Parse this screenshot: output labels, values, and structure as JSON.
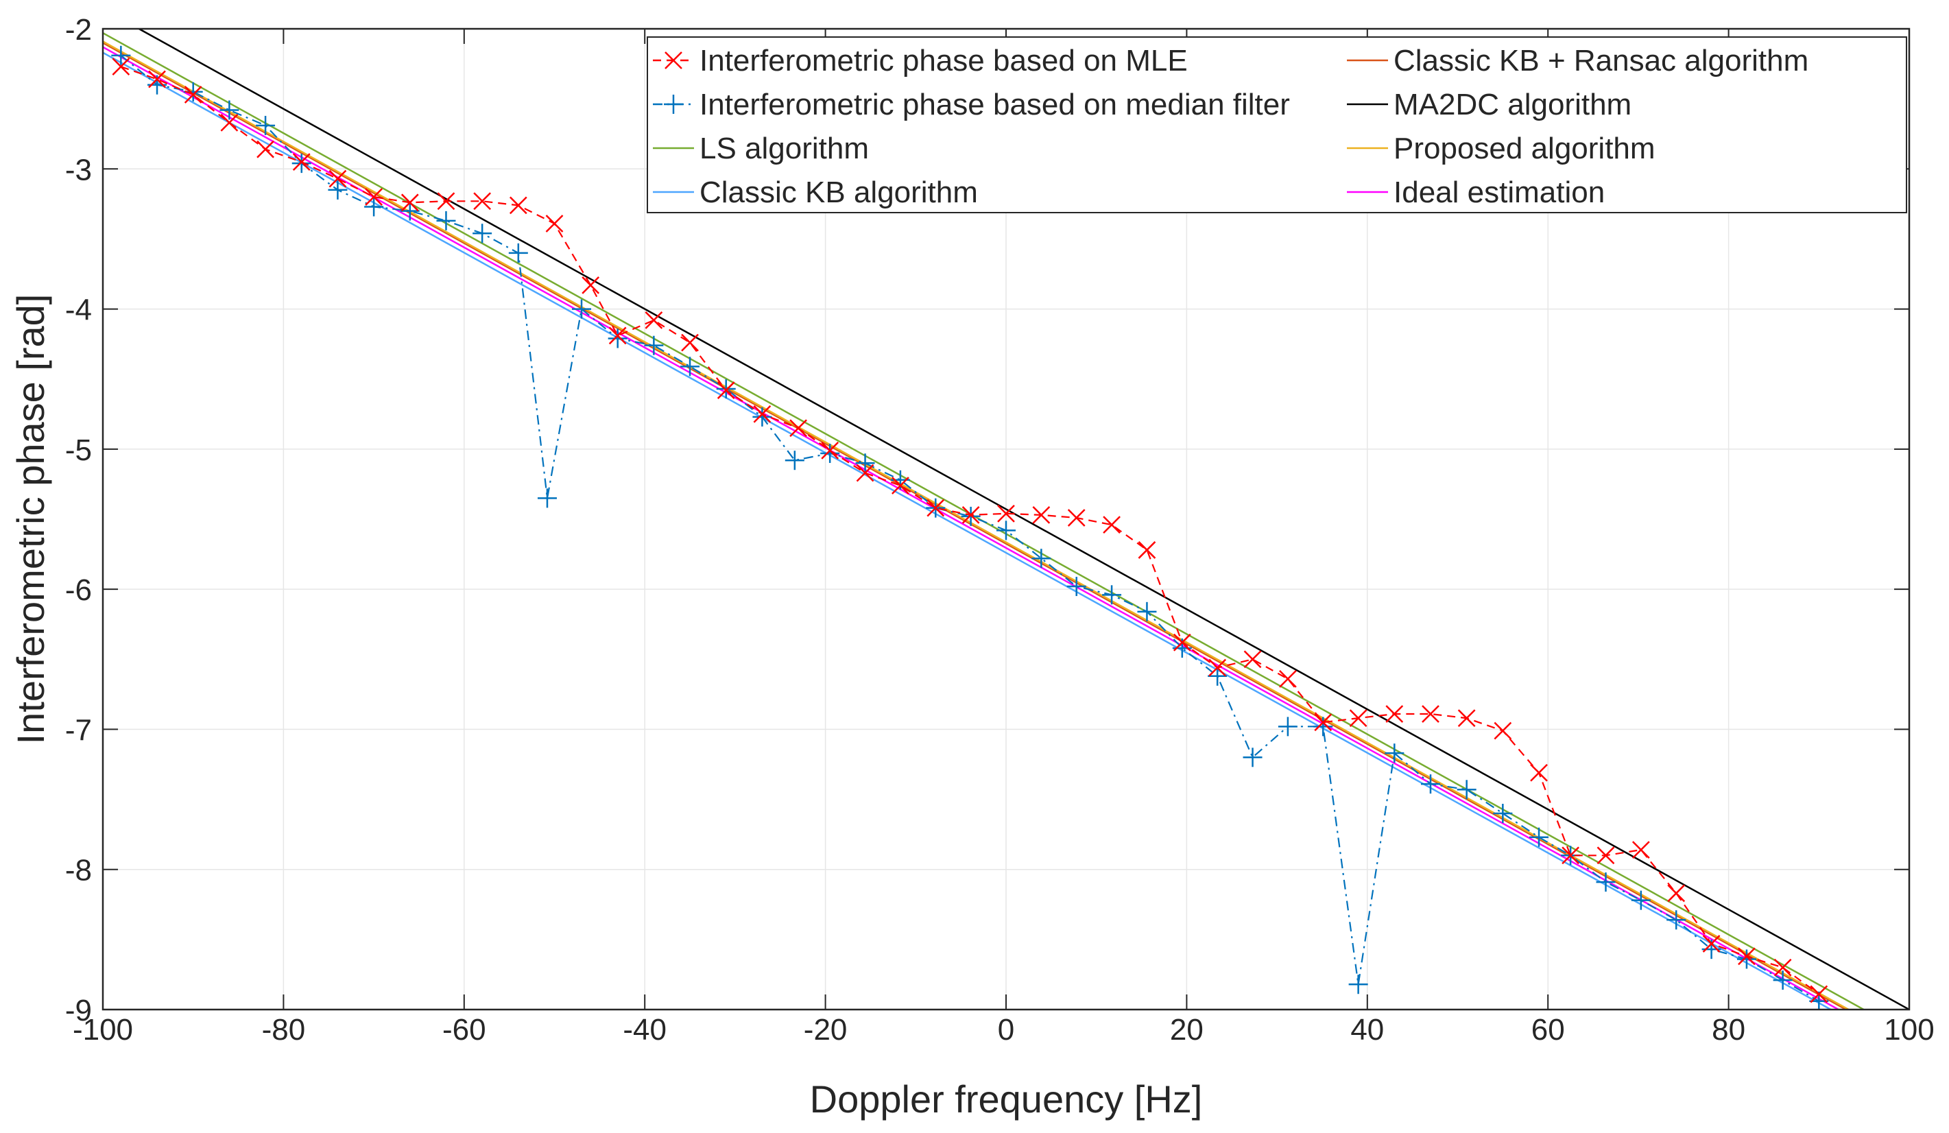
{
  "chart_data": {
    "type": "line",
    "xlabel": "Doppler frequency [Hz]",
    "ylabel": "Interferometric phase [rad]",
    "xlim": [
      -100,
      100
    ],
    "ylim": [
      -9,
      -2
    ],
    "xticks": [
      -100,
      -80,
      -60,
      -40,
      -20,
      0,
      20,
      40,
      60,
      80,
      100
    ],
    "yticks": [
      -2,
      -3,
      -4,
      -5,
      -6,
      -7,
      -8,
      -9
    ],
    "xtick_labels": [
      "-100",
      "-80",
      "-60",
      "-40",
      "-20",
      "0",
      "20",
      "40",
      "60",
      "80",
      "100"
    ],
    "ytick_labels": [
      "-2",
      "-3",
      "-4",
      "-5",
      "-6",
      "-7",
      "-8",
      "-9"
    ],
    "grid": true,
    "legend_position": "top-right",
    "series": [
      {
        "name": "Interferometric phase based on MLE",
        "color": "#ff0000",
        "style": "dashed",
        "marker": "x",
        "x": [
          -98,
          -94,
          -90,
          -86,
          -82,
          -78,
          -74,
          -70,
          -66,
          -62,
          -58,
          -54,
          -50,
          -46,
          -43,
          -39,
          -35,
          -31,
          -27,
          -23,
          -19.5,
          -15.6,
          -11.7,
          -7.8,
          -3.9,
          0,
          3.9,
          7.8,
          11.7,
          15.6,
          19.5,
          23.4,
          27.3,
          31.2,
          35.1,
          39,
          43,
          47,
          51,
          55,
          59,
          62.5,
          66.4,
          70.3,
          74.2,
          78.1,
          82,
          86,
          90
        ],
        "y": [
          -2.27,
          -2.36,
          -2.47,
          -2.67,
          -2.86,
          -2.95,
          -3.07,
          -3.2,
          -3.24,
          -3.23,
          -3.23,
          -3.26,
          -3.39,
          -3.83,
          -4.19,
          -4.08,
          -4.24,
          -4.58,
          -4.75,
          -4.85,
          -5.01,
          -5.17,
          -5.26,
          -5.42,
          -5.47,
          -5.46,
          -5.47,
          -5.49,
          -5.54,
          -5.72,
          -6.38,
          -6.56,
          -6.5,
          -6.64,
          -6.95,
          -6.92,
          -6.89,
          -6.89,
          -6.92,
          -7.01,
          -7.31,
          -7.9,
          -7.9,
          -7.86,
          -8.17,
          -8.53,
          -8.62,
          -8.7,
          -8.89
        ]
      },
      {
        "name": "Interferometric phase based on median filter",
        "color": "#0072bd",
        "style": "dashdot",
        "marker": "+",
        "x": [
          -98,
          -94,
          -90,
          -86,
          -82,
          -78,
          -74,
          -70,
          -66,
          -62,
          -58,
          -54,
          -50.8,
          -47,
          -43,
          -39,
          -35,
          -31,
          -27,
          -23.4,
          -19.5,
          -15.6,
          -11.7,
          -7.8,
          -3.9,
          0,
          3.9,
          7.8,
          11.7,
          15.6,
          19.5,
          23.4,
          27.3,
          31.2,
          35.1,
          39,
          43,
          47,
          51,
          55,
          59,
          62.5,
          66.4,
          70.3,
          74.2,
          78.1,
          82,
          86,
          90
        ],
        "y": [
          -2.19,
          -2.4,
          -2.45,
          -2.58,
          -2.69,
          -2.96,
          -3.15,
          -3.27,
          -3.3,
          -3.37,
          -3.46,
          -3.6,
          -5.35,
          -4.0,
          -4.21,
          -4.26,
          -4.41,
          -4.57,
          -4.77,
          -5.08,
          -5.03,
          -5.1,
          -5.22,
          -5.42,
          -5.48,
          -5.58,
          -5.78,
          -5.98,
          -6.04,
          -6.16,
          -6.42,
          -6.62,
          -7.2,
          -6.98,
          -6.98,
          -8.82,
          -7.17,
          -7.39,
          -7.43,
          -7.6,
          -7.77,
          -7.9,
          -8.09,
          -8.22,
          -8.36,
          -8.57,
          -8.64,
          -8.79,
          -8.94
        ]
      },
      {
        "name": "LS algorithm",
        "color": "#77ac30",
        "style": "solid",
        "marker": "none",
        "x": [
          -100,
          100
        ],
        "y": [
          -2.03,
          -9.18
        ]
      },
      {
        "name": "Classic KB algorithm",
        "color": "#4da6ff",
        "style": "solid",
        "marker": "none",
        "x": [
          -100,
          100
        ],
        "y": [
          -2.17,
          -9.31
        ]
      },
      {
        "name": "Classic KB + Ransac algorithm",
        "color": "#d95319",
        "style": "solid",
        "marker": "none",
        "x": [
          -100,
          100
        ],
        "y": [
          -2.1,
          -9.25
        ]
      },
      {
        "name": "MA2DC algorithm",
        "color": "#000000",
        "style": "solid",
        "marker": "none",
        "x": [
          -96,
          100
        ],
        "y": [
          -2.0,
          -9.0
        ]
      },
      {
        "name": "Proposed algorithm",
        "color": "#edb120",
        "style": "solid",
        "marker": "none",
        "x": [
          -100,
          100
        ],
        "y": [
          -2.09,
          -9.24
        ]
      },
      {
        "name": "Ideal estimation",
        "color": "#ff00ff",
        "style": "solid",
        "marker": "none",
        "x": [
          -100,
          100
        ],
        "y": [
          -2.13,
          -9.28
        ]
      }
    ],
    "legend_order": [
      0,
      1,
      2,
      3,
      4,
      5,
      6,
      7
    ]
  }
}
